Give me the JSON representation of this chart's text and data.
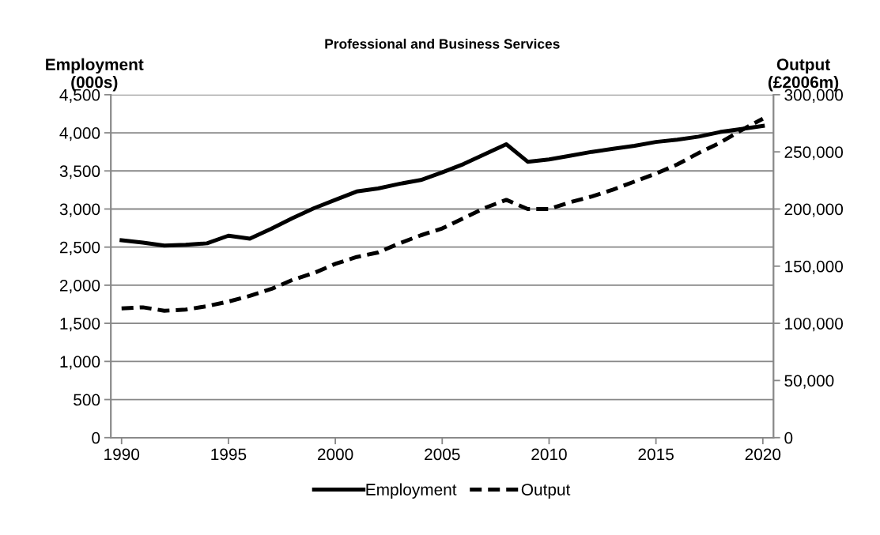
{
  "chart_data": {
    "type": "line",
    "title": "Professional and Business Services",
    "ylabel": "Employment\n(000s)",
    "y2label": "Output\n(£2006m)",
    "x": [
      1990,
      1991,
      1992,
      1993,
      1994,
      1995,
      1996,
      1997,
      1998,
      1999,
      2000,
      2001,
      2002,
      2003,
      2004,
      2005,
      2006,
      2007,
      2008,
      2009,
      2010,
      2011,
      2012,
      2013,
      2014,
      2015,
      2016,
      2017,
      2018,
      2019,
      2020
    ],
    "series": [
      {
        "name": "Employment",
        "color": "#000000",
        "line_style": "solid",
        "values": [
          2590,
          2560,
          2520,
          2530,
          2550,
          2650,
          2610,
          2740,
          2880,
          3010,
          3120,
          3230,
          3270,
          3330,
          3380,
          3480,
          3590,
          3720,
          3850,
          3620,
          3650,
          3700,
          3750,
          3790,
          3830,
          3880,
          3910,
          3950,
          4010,
          4050,
          4090
        ]
      },
      {
        "name": "Output",
        "color": "#000000",
        "line_style": "dashed",
        "axis": "y2",
        "values": [
          113000,
          114000,
          111000,
          112000,
          115000,
          119000,
          124000,
          130000,
          138000,
          144000,
          152000,
          158000,
          162000,
          170000,
          177000,
          183000,
          192000,
          201000,
          208000,
          200000,
          200000,
          206000,
          211000,
          217000,
          224000,
          231000,
          239000,
          249000,
          258000,
          269000,
          279000
        ]
      }
    ],
    "xlim": [
      1989.5,
      2020.5
    ],
    "xticks": [
      1990,
      1995,
      2000,
      2005,
      2010,
      2015,
      2020
    ],
    "ylim": [
      0,
      4500
    ],
    "yticks": [
      {
        "value": 0,
        "label": "0"
      },
      {
        "value": 500,
        "label": "500"
      },
      {
        "value": 1000,
        "label": "1,000"
      },
      {
        "value": 1500,
        "label": "1,500"
      },
      {
        "value": 2000,
        "label": "2,000"
      },
      {
        "value": 2500,
        "label": "2,500"
      },
      {
        "value": 3000,
        "label": "3,000"
      },
      {
        "value": 3500,
        "label": "3,500"
      },
      {
        "value": 4000,
        "label": "4,000"
      },
      {
        "value": 4500,
        "label": "4,500"
      }
    ],
    "y2lim": [
      0,
      300000
    ],
    "y2ticks": [
      {
        "value": 0,
        "label": "0"
      },
      {
        "value": 50000,
        "label": "50,000"
      },
      {
        "value": 100000,
        "label": "100,000"
      },
      {
        "value": 150000,
        "label": "150,000"
      },
      {
        "value": 200000,
        "label": "200,000"
      },
      {
        "value": 250000,
        "label": "250,000"
      },
      {
        "value": 300000,
        "label": "300,000"
      }
    ],
    "grid": "y",
    "legend": "bottom"
  }
}
